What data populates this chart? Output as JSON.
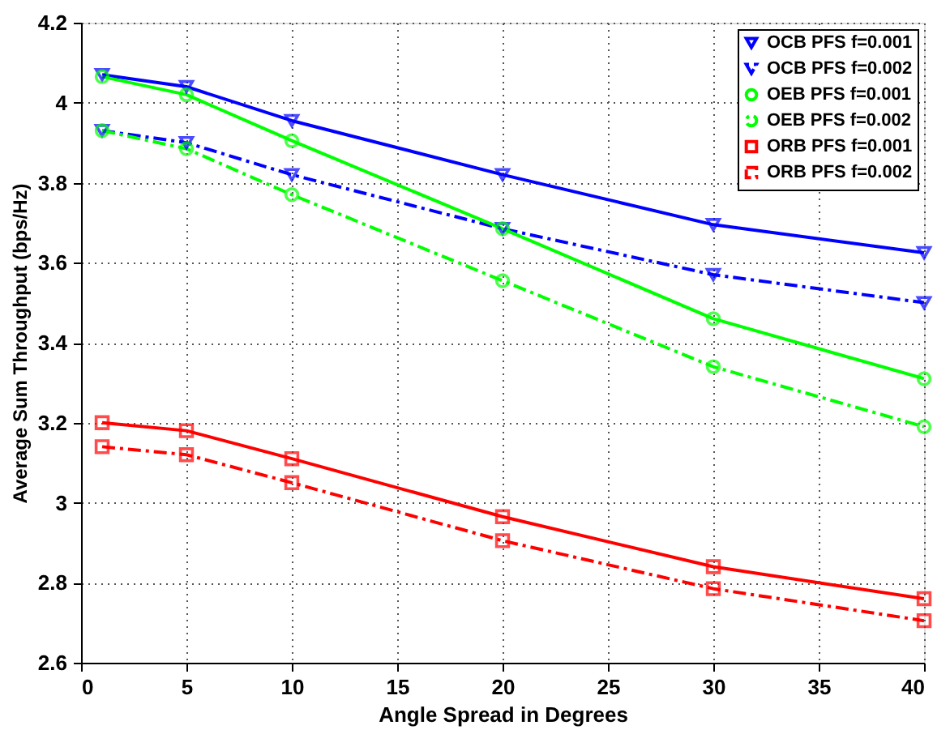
{
  "chart_data": {
    "type": "line",
    "xlabel": "Angle Spread in Degrees",
    "ylabel": "Average Sum Throughput (bps/Hz)",
    "x": [
      1,
      5,
      10,
      20,
      30,
      40
    ],
    "xlim": [
      0,
      40
    ],
    "xticks": [
      0,
      5,
      10,
      15,
      20,
      25,
      30,
      35,
      40
    ],
    "ylim": [
      2.6,
      4.2
    ],
    "yticks": [
      2.6,
      2.8,
      3,
      3.2,
      3.4,
      3.6,
      3.8,
      4,
      4.2
    ],
    "grid": true,
    "legend": "top right",
    "series": [
      {
        "name": "OCB PFS f=0.001",
        "color": "#0000ff",
        "marker": "triangle",
        "line_style": "solid",
        "values": [
          4.07,
          4.04,
          3.955,
          3.82,
          3.695,
          3.625
        ]
      },
      {
        "name": "OCB PFS f=0.002",
        "color": "#0000ff",
        "marker": "triangle",
        "line_style": "dashed",
        "values": [
          3.93,
          3.9,
          3.82,
          3.685,
          3.57,
          3.5
        ]
      },
      {
        "name": "OEB PFS f=0.001",
        "color": "#00ff00",
        "marker": "circle",
        "line_style": "solid",
        "values": [
          4.065,
          4.02,
          3.905,
          3.685,
          3.46,
          3.31
        ]
      },
      {
        "name": "OEB PFS f=0.002",
        "color": "#00ff00",
        "marker": "circle",
        "line_style": "dashed",
        "values": [
          3.93,
          3.885,
          3.77,
          3.555,
          3.34,
          3.19
        ]
      },
      {
        "name": "ORB PFS f=0.001",
        "color": "#ff0000",
        "marker": "square",
        "line_style": "solid",
        "values": [
          3.2,
          3.18,
          3.11,
          2.965,
          2.84,
          2.76
        ]
      },
      {
        "name": "ORB PFS f=0.002",
        "color": "#ff0000",
        "marker": "square",
        "line_style": "dashed",
        "values": [
          3.14,
          3.12,
          3.05,
          2.905,
          2.785,
          2.705
        ]
      }
    ]
  }
}
